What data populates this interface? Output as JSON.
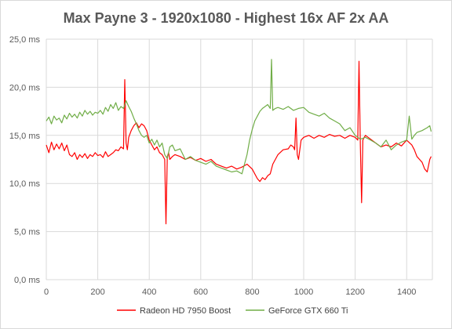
{
  "chart_data": {
    "type": "line",
    "title": "Max Payne 3 - 1920x1080 - Highest 16x AF 2x AA",
    "xlabel": "",
    "ylabel": "",
    "xlim": [
      0,
      1500
    ],
    "ylim": [
      0,
      25
    ],
    "x_ticks": [
      0,
      200,
      400,
      600,
      800,
      1000,
      1200,
      1400
    ],
    "x_tick_labels": [
      "0",
      "200",
      "400",
      "600",
      "800",
      "1000",
      "1200",
      "1400"
    ],
    "y_ticks": [
      0,
      5,
      10,
      15,
      20,
      25
    ],
    "y_tick_labels": [
      "0,0 ms",
      "5,0 ms",
      "10,0 ms",
      "15,0 ms",
      "20,0 ms",
      "25,0 ms"
    ],
    "grid": "vertical-and-horizontal",
    "legend_position": "bottom",
    "series": [
      {
        "name": "Radeon HD 7950 Boost",
        "color": "#ff0000",
        "x": [
          0,
          10,
          20,
          30,
          40,
          50,
          60,
          70,
          80,
          90,
          100,
          110,
          120,
          130,
          140,
          150,
          160,
          170,
          180,
          190,
          200,
          210,
          220,
          230,
          240,
          250,
          260,
          270,
          280,
          290,
          300,
          305,
          310,
          315,
          320,
          330,
          340,
          350,
          360,
          370,
          380,
          390,
          400,
          410,
          420,
          430,
          440,
          450,
          460,
          465,
          470,
          475,
          480,
          490,
          500,
          520,
          540,
          560,
          580,
          600,
          620,
          640,
          660,
          680,
          700,
          720,
          740,
          760,
          780,
          800,
          820,
          830,
          840,
          850,
          860,
          870,
          880,
          900,
          920,
          940,
          950,
          960,
          965,
          970,
          975,
          980,
          990,
          1000,
          1020,
          1040,
          1060,
          1080,
          1100,
          1120,
          1140,
          1160,
          1180,
          1200,
          1210,
          1215,
          1220,
          1225,
          1230,
          1235,
          1240,
          1260,
          1280,
          1300,
          1320,
          1340,
          1360,
          1380,
          1400,
          1420,
          1430,
          1440,
          1450,
          1460,
          1470,
          1480,
          1490,
          1495
        ],
        "values": [
          14.0,
          13.2,
          14.3,
          13.5,
          14.1,
          13.6,
          14.2,
          13.4,
          14.0,
          13.0,
          12.8,
          13.2,
          12.5,
          13.0,
          12.7,
          13.1,
          12.6,
          13.0,
          12.8,
          13.2,
          12.9,
          13.0,
          12.7,
          13.3,
          12.8,
          13.0,
          13.2,
          13.5,
          13.4,
          13.8,
          13.6,
          20.8,
          14.2,
          13.5,
          14.8,
          15.5,
          16.0,
          16.3,
          15.8,
          16.2,
          16.0,
          15.5,
          14.5,
          14.0,
          13.5,
          13.8,
          13.2,
          13.0,
          12.5,
          5.8,
          12.8,
          13.2,
          12.5,
          12.8,
          13.0,
          12.8,
          12.5,
          12.7,
          12.4,
          12.6,
          12.3,
          12.5,
          12.0,
          11.8,
          11.6,
          11.8,
          11.5,
          11.7,
          12.0,
          11.5,
          10.5,
          10.2,
          10.6,
          10.4,
          10.8,
          11.0,
          12.0,
          13.0,
          13.5,
          13.6,
          14.0,
          13.8,
          13.5,
          16.8,
          13.0,
          12.5,
          14.5,
          14.8,
          15.0,
          14.7,
          15.0,
          14.8,
          15.1,
          14.9,
          15.0,
          14.7,
          15.0,
          14.8,
          14.5,
          22.7,
          14.0,
          8.0,
          14.5,
          14.8,
          15.0,
          14.6,
          14.2,
          13.8,
          14.0,
          13.8,
          14.2,
          13.9,
          14.5,
          14.0,
          13.5,
          12.8,
          12.5,
          12.2,
          11.5,
          11.2,
          12.5,
          12.8
        ]
      },
      {
        "name": "GeForce GTX 660 Ti",
        "color": "#70ad47",
        "x": [
          0,
          10,
          20,
          30,
          40,
          50,
          60,
          70,
          80,
          90,
          100,
          110,
          120,
          130,
          140,
          150,
          160,
          170,
          180,
          190,
          200,
          210,
          220,
          230,
          240,
          250,
          260,
          270,
          280,
          290,
          300,
          310,
          320,
          330,
          340,
          350,
          360,
          370,
          380,
          390,
          400,
          410,
          420,
          430,
          440,
          450,
          460,
          470,
          480,
          490,
          500,
          520,
          540,
          560,
          580,
          600,
          620,
          640,
          660,
          680,
          700,
          720,
          740,
          760,
          780,
          790,
          800,
          810,
          820,
          830,
          840,
          850,
          860,
          870,
          875,
          880,
          890,
          900,
          920,
          940,
          960,
          980,
          1000,
          1020,
          1040,
          1060,
          1080,
          1100,
          1120,
          1140,
          1160,
          1180,
          1200,
          1220,
          1240,
          1260,
          1280,
          1300,
          1320,
          1340,
          1360,
          1380,
          1400,
          1410,
          1420,
          1430,
          1440,
          1460,
          1480,
          1490,
          1495
        ],
        "values": [
          16.5,
          16.9,
          16.2,
          17.0,
          16.6,
          16.8,
          16.3,
          17.1,
          16.7,
          17.3,
          16.9,
          17.2,
          16.8,
          17.4,
          17.0,
          17.6,
          17.2,
          17.5,
          17.1,
          17.4,
          17.3,
          17.6,
          17.2,
          17.9,
          17.5,
          18.2,
          17.8,
          18.4,
          17.6,
          18.0,
          17.8,
          18.6,
          18.0,
          17.5,
          16.8,
          16.2,
          15.5,
          15.0,
          14.8,
          15.0,
          14.2,
          14.6,
          14.0,
          14.5,
          13.8,
          14.2,
          13.0,
          12.6,
          13.8,
          14.0,
          13.4,
          13.6,
          12.5,
          12.8,
          12.4,
          12.2,
          12.0,
          12.3,
          11.8,
          11.6,
          11.4,
          11.2,
          11.3,
          11.0,
          13.0,
          14.5,
          15.6,
          16.5,
          17.0,
          17.5,
          17.8,
          18.0,
          18.2,
          17.8,
          22.9,
          17.6,
          17.8,
          17.9,
          17.7,
          18.0,
          17.6,
          17.8,
          17.9,
          17.4,
          17.2,
          17.0,
          17.3,
          16.8,
          16.5,
          16.2,
          15.5,
          15.8,
          15.0,
          14.6,
          14.8,
          14.5,
          14.2,
          13.8,
          14.5,
          13.5,
          14.0,
          14.3,
          14.5,
          17.0,
          14.6,
          15.0,
          15.3,
          15.5,
          15.8,
          16.0,
          15.4
        ]
      }
    ]
  }
}
